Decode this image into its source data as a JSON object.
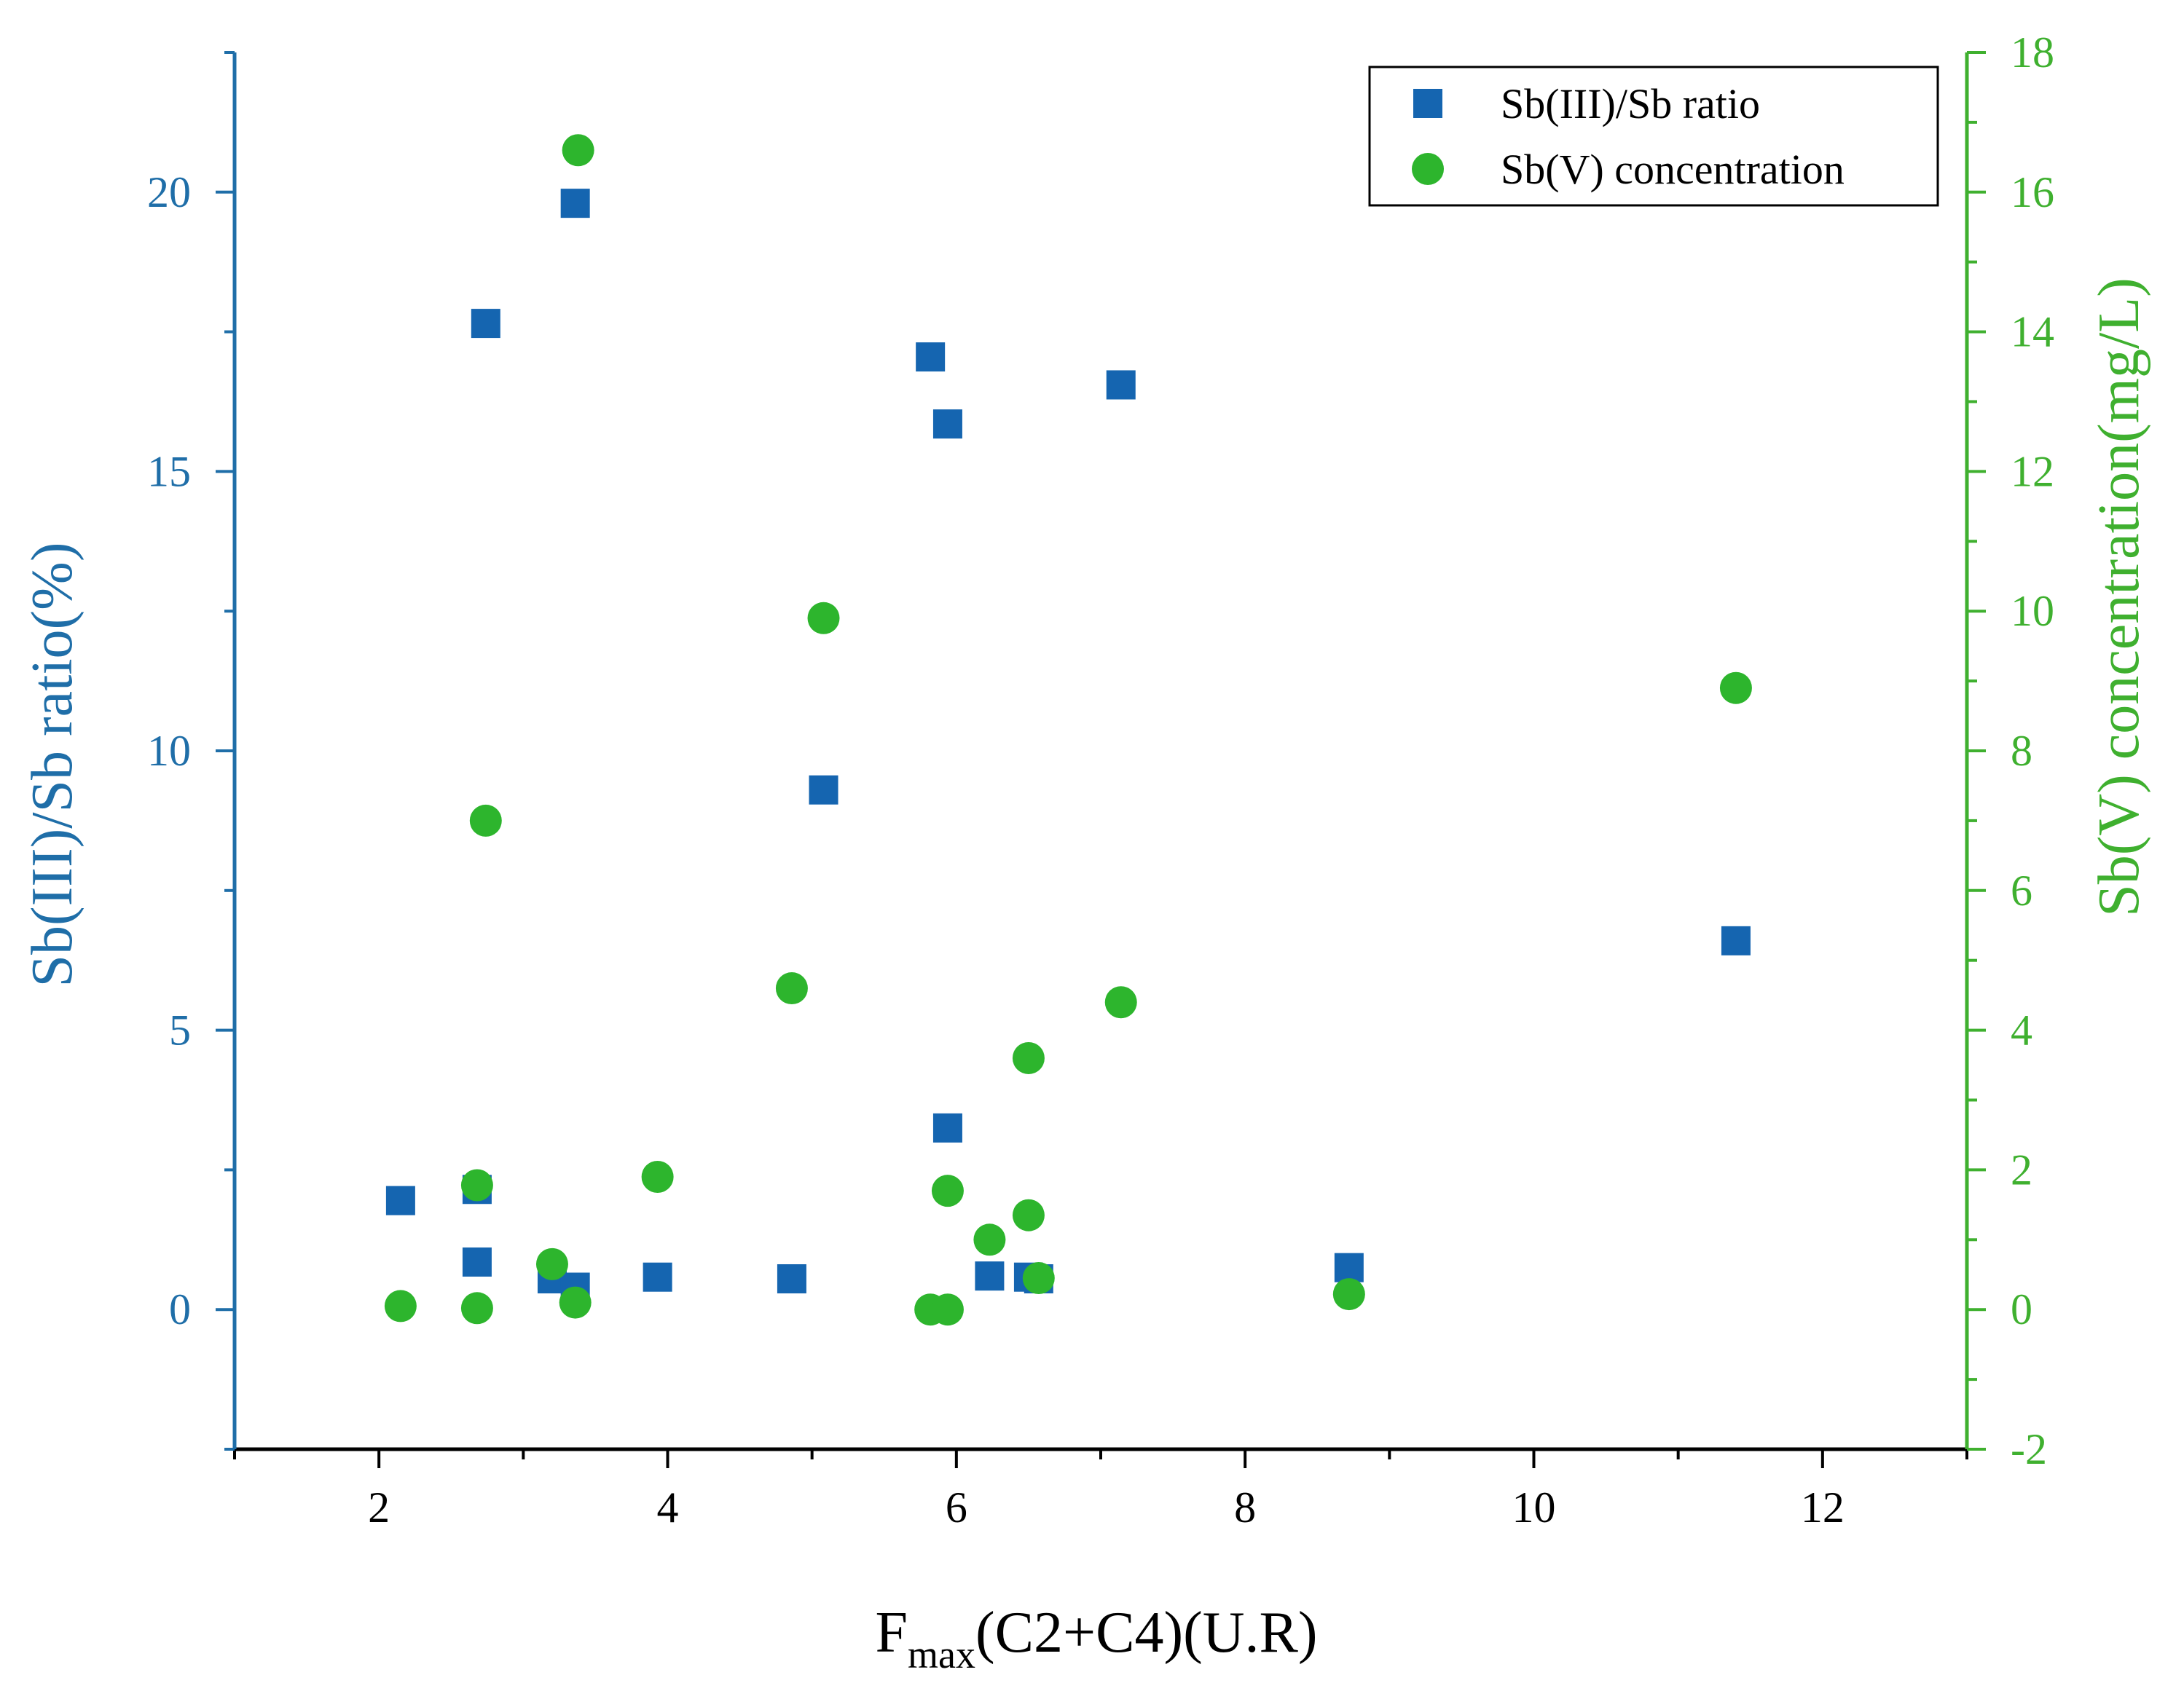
{
  "chart_data": {
    "type": "scatter",
    "title": "",
    "xlabel": {
      "main": "F",
      "sub": "max",
      "rest": "(C2+C4)(U.R)"
    },
    "ylabel": "Sb(III)/Sb ratio(%)",
    "y2label": "Sb(V) concentration(mg/L)",
    "xlim": [
      1,
      13
    ],
    "ylim": [
      -2.5,
      22.5
    ],
    "y2lim": [
      -2,
      18
    ],
    "xticks": [
      2,
      4,
      6,
      8,
      10,
      12
    ],
    "yticks": [
      0,
      5,
      10,
      15,
      20
    ],
    "y2ticks": [
      -2,
      0,
      2,
      4,
      6,
      8,
      10,
      12,
      14,
      16,
      18
    ],
    "colors": {
      "left_axis": "#1f6ea8",
      "right_axis": "#3fb02f",
      "bottom_axis": "#000000",
      "series1": "#1565b0",
      "series2": "#2db52d"
    },
    "legend": {
      "position": "top-right",
      "entries": [
        "Sb(III)/Sb ratio",
        "Sb(V) concentration"
      ]
    },
    "series": [
      {
        "name": "Sb(III)/Sb ratio",
        "axis": "left",
        "marker": "square",
        "points": [
          {
            "x": 2.15,
            "y": 1.95
          },
          {
            "x": 2.68,
            "y": 2.15
          },
          {
            "x": 2.68,
            "y": 0.85
          },
          {
            "x": 2.74,
            "y": 17.65
          },
          {
            "x": 3.2,
            "y": 0.55
          },
          {
            "x": 3.36,
            "y": 0.4
          },
          {
            "x": 3.36,
            "y": 19.8
          },
          {
            "x": 3.93,
            "y": 0.58
          },
          {
            "x": 4.86,
            "y": 0.55
          },
          {
            "x": 5.08,
            "y": 9.3
          },
          {
            "x": 5.82,
            "y": 17.05
          },
          {
            "x": 5.94,
            "y": 15.85
          },
          {
            "x": 5.94,
            "y": 3.25
          },
          {
            "x": 6.23,
            "y": 0.6
          },
          {
            "x": 6.5,
            "y": 0.58
          },
          {
            "x": 6.57,
            "y": 0.55
          },
          {
            "x": 7.14,
            "y": 16.55
          },
          {
            "x": 8.72,
            "y": 0.75
          },
          {
            "x": 11.4,
            "y": 6.6
          }
        ]
      },
      {
        "name": "Sb(V) concentration",
        "axis": "right",
        "marker": "circle",
        "points": [
          {
            "x": 2.15,
            "y": 0.05
          },
          {
            "x": 2.68,
            "y": 0.02
          },
          {
            "x": 2.68,
            "y": 1.78
          },
          {
            "x": 2.74,
            "y": 7.0
          },
          {
            "x": 3.2,
            "y": 0.65
          },
          {
            "x": 3.36,
            "y": 0.1
          },
          {
            "x": 3.38,
            "y": 16.6
          },
          {
            "x": 3.93,
            "y": 1.9
          },
          {
            "x": 4.86,
            "y": 4.6
          },
          {
            "x": 5.08,
            "y": 9.9
          },
          {
            "x": 5.82,
            "y": 0.0
          },
          {
            "x": 5.94,
            "y": 0.0
          },
          {
            "x": 5.94,
            "y": 1.7
          },
          {
            "x": 6.23,
            "y": 1.0
          },
          {
            "x": 6.5,
            "y": 1.35
          },
          {
            "x": 6.5,
            "y": 3.6
          },
          {
            "x": 6.57,
            "y": 0.45
          },
          {
            "x": 7.14,
            "y": 4.4
          },
          {
            "x": 8.72,
            "y": 0.22
          },
          {
            "x": 11.4,
            "y": 8.9
          }
        ]
      }
    ]
  }
}
